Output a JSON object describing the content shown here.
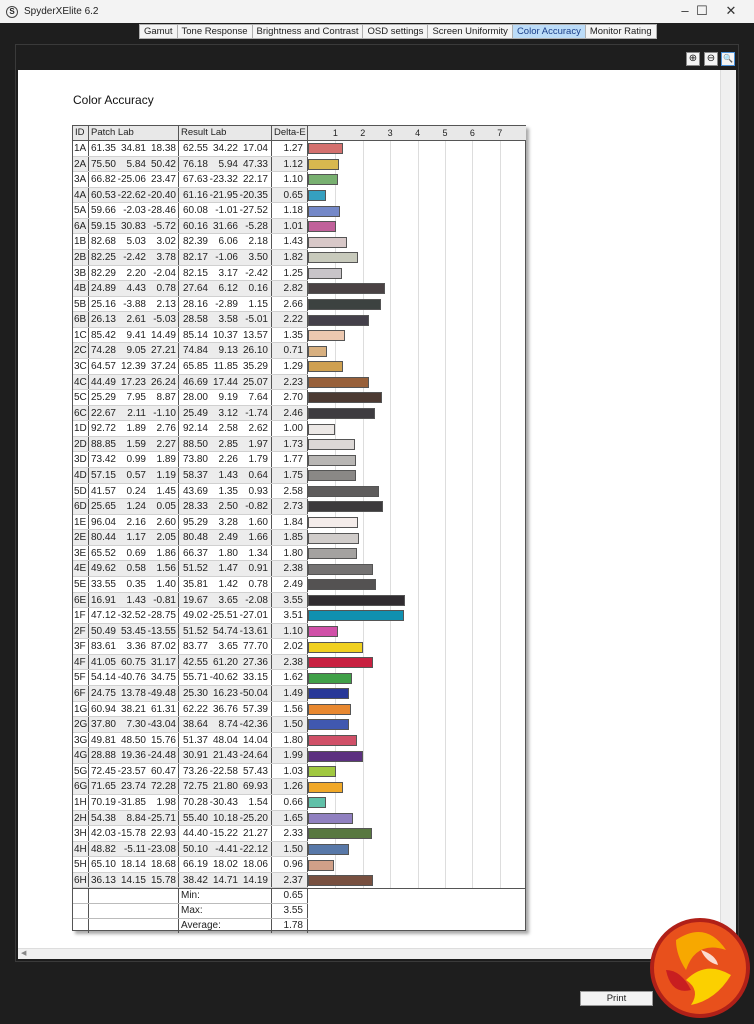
{
  "window": {
    "title": "SpyderXElite 6.2",
    "app_icon_letter": "S",
    "minimize": "–",
    "maximize": "☐",
    "close": "✕"
  },
  "tabs": [
    {
      "label": "Gamut"
    },
    {
      "label": "Tone Response"
    },
    {
      "label": "Brightness and Contrast"
    },
    {
      "label": "OSD settings"
    },
    {
      "label": "Screen Uniformity"
    },
    {
      "label": "Color Accuracy",
      "active": true
    },
    {
      "label": "Monitor Rating"
    }
  ],
  "zoom_controls": {
    "zoom_in": "⊕",
    "zoom_out": "⊖",
    "fit": "🔍"
  },
  "report": {
    "title": "Color Accuracy",
    "headers": {
      "id": "ID",
      "patch": "Patch Lab",
      "result": "Result Lab",
      "delta": "Delta-E"
    },
    "axis": {
      "ticks": [
        "1",
        "2",
        "3",
        "4",
        "5",
        "6",
        "7"
      ],
      "max": 8
    },
    "rows": [
      {
        "id": "1A",
        "patch": [
          "61.35",
          "34.81",
          "18.38"
        ],
        "result": [
          "62.55",
          "34.22",
          "17.04"
        ],
        "de": "1.27",
        "color": "#d4706e"
      },
      {
        "id": "2A",
        "patch": [
          "75.50",
          "5.84",
          "50.42"
        ],
        "result": [
          "76.18",
          "5.94",
          "47.33"
        ],
        "de": "1.12",
        "color": "#d8b84f"
      },
      {
        "id": "3A",
        "patch": [
          "66.82",
          "-25.06",
          "23.47"
        ],
        "result": [
          "67.63",
          "-23.32",
          "22.17"
        ],
        "de": "1.10",
        "color": "#78b070"
      },
      {
        "id": "4A",
        "patch": [
          "60.53",
          "-22.62",
          "-20.40"
        ],
        "result": [
          "61.16",
          "-21.95",
          "-20.35"
        ],
        "de": "0.65",
        "color": "#35a0c0"
      },
      {
        "id": "5A",
        "patch": [
          "59.66",
          "-2.03",
          "-28.46"
        ],
        "result": [
          "60.08",
          "-1.01",
          "-27.52"
        ],
        "de": "1.18",
        "color": "#7488c8"
      },
      {
        "id": "6A",
        "patch": [
          "59.15",
          "30.83",
          "-5.72"
        ],
        "result": [
          "60.16",
          "31.66",
          "-5.28"
        ],
        "de": "1.01",
        "color": "#c0609a"
      },
      {
        "id": "1B",
        "patch": [
          "82.68",
          "5.03",
          "3.02"
        ],
        "result": [
          "82.39",
          "6.06",
          "2.18"
        ],
        "de": "1.43",
        "color": "#d8c8c8"
      },
      {
        "id": "2B",
        "patch": [
          "82.25",
          "-2.42",
          "3.78"
        ],
        "result": [
          "82.17",
          "-1.06",
          "3.50"
        ],
        "de": "1.82",
        "color": "#c8cabc"
      },
      {
        "id": "3B",
        "patch": [
          "82.29",
          "2.20",
          "-2.04"
        ],
        "result": [
          "82.15",
          "3.17",
          "-2.42"
        ],
        "de": "1.25",
        "color": "#c8c4c8"
      },
      {
        "id": "4B",
        "patch": [
          "24.89",
          "4.43",
          "0.78"
        ],
        "result": [
          "27.64",
          "6.12",
          "0.16"
        ],
        "de": "2.82",
        "color": "#4a4244"
      },
      {
        "id": "5B",
        "patch": [
          "25.16",
          "-3.88",
          "2.13"
        ],
        "result": [
          "28.16",
          "-2.89",
          "1.15"
        ],
        "de": "2.66",
        "color": "#3c4240"
      },
      {
        "id": "6B",
        "patch": [
          "26.13",
          "2.61",
          "-5.03"
        ],
        "result": [
          "28.58",
          "3.58",
          "-5.01"
        ],
        "de": "2.22",
        "color": "#44404a"
      },
      {
        "id": "1C",
        "patch": [
          "85.42",
          "9.41",
          "14.49"
        ],
        "result": [
          "85.14",
          "10.37",
          "13.57"
        ],
        "de": "1.35",
        "color": "#ecc8b0"
      },
      {
        "id": "2C",
        "patch": [
          "74.28",
          "9.05",
          "27.21"
        ],
        "result": [
          "74.84",
          "9.13",
          "26.10"
        ],
        "de": "0.71",
        "color": "#d8b080"
      },
      {
        "id": "3C",
        "patch": [
          "64.57",
          "12.39",
          "37.24"
        ],
        "result": [
          "65.85",
          "11.85",
          "35.29"
        ],
        "de": "1.29",
        "color": "#cfa050"
      },
      {
        "id": "4C",
        "patch": [
          "44.49",
          "17.23",
          "26.24"
        ],
        "result": [
          "46.69",
          "17.44",
          "25.07"
        ],
        "de": "2.23",
        "color": "#98603a"
      },
      {
        "id": "5C",
        "patch": [
          "25.29",
          "7.95",
          "8.87"
        ],
        "result": [
          "28.00",
          "9.19",
          "7.64"
        ],
        "de": "2.70",
        "color": "#4c3a32"
      },
      {
        "id": "6C",
        "patch": [
          "22.67",
          "2.11",
          "-1.10"
        ],
        "result": [
          "25.49",
          "3.12",
          "-1.74"
        ],
        "de": "2.46",
        "color": "#3e3c40"
      },
      {
        "id": "1D",
        "patch": [
          "92.72",
          "1.89",
          "2.76"
        ],
        "result": [
          "92.14",
          "2.58",
          "2.62"
        ],
        "de": "1.00",
        "color": "#ece8e6"
      },
      {
        "id": "2D",
        "patch": [
          "88.85",
          "1.59",
          "2.27"
        ],
        "result": [
          "88.50",
          "2.85",
          "1.97"
        ],
        "de": "1.73",
        "color": "#dcd8d6"
      },
      {
        "id": "3D",
        "patch": [
          "73.42",
          "0.99",
          "1.89"
        ],
        "result": [
          "73.80",
          "2.26",
          "1.79"
        ],
        "de": "1.77",
        "color": "#b8b6b4"
      },
      {
        "id": "4D",
        "patch": [
          "57.15",
          "0.57",
          "1.19"
        ],
        "result": [
          "58.37",
          "1.43",
          "0.64"
        ],
        "de": "1.75",
        "color": "#8a8886"
      },
      {
        "id": "5D",
        "patch": [
          "41.57",
          "0.24",
          "1.45"
        ],
        "result": [
          "43.69",
          "1.35",
          "0.93"
        ],
        "de": "2.58",
        "color": "#5e5c5c"
      },
      {
        "id": "6D",
        "patch": [
          "25.65",
          "1.24",
          "0.05"
        ],
        "result": [
          "28.33",
          "2.50",
          "-0.82"
        ],
        "de": "2.73",
        "color": "#3c3a3c"
      },
      {
        "id": "1E",
        "patch": [
          "96.04",
          "2.16",
          "2.60"
        ],
        "result": [
          "95.29",
          "3.28",
          "1.60"
        ],
        "de": "1.84",
        "color": "#f4ecea"
      },
      {
        "id": "2E",
        "patch": [
          "80.44",
          "1.17",
          "2.05"
        ],
        "result": [
          "80.48",
          "2.49",
          "1.66"
        ],
        "de": "1.85",
        "color": "#d0ccca"
      },
      {
        "id": "3E",
        "patch": [
          "65.52",
          "0.69",
          "1.86"
        ],
        "result": [
          "66.37",
          "1.80",
          "1.34"
        ],
        "de": "1.80",
        "color": "#a4a2a0"
      },
      {
        "id": "4E",
        "patch": [
          "49.62",
          "0.58",
          "1.56"
        ],
        "result": [
          "51.52",
          "1.47",
          "0.91"
        ],
        "de": "2.38",
        "color": "#747272"
      },
      {
        "id": "5E",
        "patch": [
          "33.55",
          "0.35",
          "1.40"
        ],
        "result": [
          "35.81",
          "1.42",
          "0.78"
        ],
        "de": "2.49",
        "color": "#545252"
      },
      {
        "id": "6E",
        "patch": [
          "16.91",
          "1.43",
          "-0.81"
        ],
        "result": [
          "19.67",
          "3.65",
          "-2.08"
        ],
        "de": "3.55",
        "color": "#302c30"
      },
      {
        "id": "1F",
        "patch": [
          "47.12",
          "-32.52",
          "-28.75"
        ],
        "result": [
          "49.02",
          "-25.51",
          "-27.01"
        ],
        "de": "3.51",
        "color": "#1090b0"
      },
      {
        "id": "2F",
        "patch": [
          "50.49",
          "53.45",
          "-13.55"
        ],
        "result": [
          "51.52",
          "54.74",
          "-13.61"
        ],
        "de": "1.10",
        "color": "#d050a8"
      },
      {
        "id": "3F",
        "patch": [
          "83.61",
          "3.36",
          "87.02"
        ],
        "result": [
          "83.77",
          "3.65",
          "77.70"
        ],
        "de": "2.02",
        "color": "#f0d020"
      },
      {
        "id": "4F",
        "patch": [
          "41.05",
          "60.75",
          "31.17"
        ],
        "result": [
          "42.55",
          "61.20",
          "27.36"
        ],
        "de": "2.38",
        "color": "#c82040"
      },
      {
        "id": "5F",
        "patch": [
          "54.14",
          "-40.76",
          "34.75"
        ],
        "result": [
          "55.71",
          "-40.62",
          "33.15"
        ],
        "de": "1.62",
        "color": "#40a048"
      },
      {
        "id": "6F",
        "patch": [
          "24.75",
          "13.78",
          "-49.48"
        ],
        "result": [
          "25.30",
          "16.23",
          "-50.04"
        ],
        "de": "1.49",
        "color": "#283898"
      },
      {
        "id": "1G",
        "patch": [
          "60.94",
          "38.21",
          "61.31"
        ],
        "result": [
          "62.22",
          "36.76",
          "57.39"
        ],
        "de": "1.56",
        "color": "#e88830"
      },
      {
        "id": "2G",
        "patch": [
          "37.80",
          "7.30",
          "-43.04"
        ],
        "result": [
          "38.64",
          "8.74",
          "-42.36"
        ],
        "de": "1.50",
        "color": "#4058b0"
      },
      {
        "id": "3G",
        "patch": [
          "49.81",
          "48.50",
          "15.76"
        ],
        "result": [
          "51.37",
          "48.04",
          "14.04"
        ],
        "de": "1.80",
        "color": "#d05068"
      },
      {
        "id": "4G",
        "patch": [
          "28.88",
          "19.36",
          "-24.48"
        ],
        "result": [
          "30.91",
          "21.43",
          "-24.64"
        ],
        "de": "1.99",
        "color": "#5c3080"
      },
      {
        "id": "5G",
        "patch": [
          "72.45",
          "-23.57",
          "60.47"
        ],
        "result": [
          "73.26",
          "-22.58",
          "57.43"
        ],
        "de": "1.03",
        "color": "#a0c840"
      },
      {
        "id": "6G",
        "patch": [
          "71.65",
          "23.74",
          "72.28"
        ],
        "result": [
          "72.75",
          "21.80",
          "69.93"
        ],
        "de": "1.26",
        "color": "#f0a828"
      },
      {
        "id": "1H",
        "patch": [
          "70.19",
          "-31.85",
          "1.98"
        ],
        "result": [
          "70.28",
          "-30.43",
          "1.54"
        ],
        "de": "0.66",
        "color": "#60c0a8"
      },
      {
        "id": "2H",
        "patch": [
          "54.38",
          "8.84",
          "-25.71"
        ],
        "result": [
          "55.40",
          "10.18",
          "-25.20"
        ],
        "de": "1.65",
        "color": "#9080c0"
      },
      {
        "id": "3H",
        "patch": [
          "42.03",
          "-15.78",
          "22.93"
        ],
        "result": [
          "44.40",
          "-15.22",
          "21.27"
        ],
        "de": "2.33",
        "color": "#587840"
      },
      {
        "id": "4H",
        "patch": [
          "48.82",
          "-5.11",
          "-23.08"
        ],
        "result": [
          "50.10",
          "-4.41",
          "-22.12"
        ],
        "de": "1.50",
        "color": "#5878a8"
      },
      {
        "id": "5H",
        "patch": [
          "65.10",
          "18.14",
          "18.68"
        ],
        "result": [
          "66.19",
          "18.02",
          "18.06"
        ],
        "de": "0.96",
        "color": "#d0a088"
      },
      {
        "id": "6H",
        "patch": [
          "36.13",
          "14.15",
          "15.78"
        ],
        "result": [
          "38.42",
          "14.71",
          "14.19"
        ],
        "de": "2.37",
        "color": "#785040"
      }
    ],
    "summary": [
      {
        "label": "Min:",
        "value": "0.65"
      },
      {
        "label": "Max:",
        "value": "3.55"
      },
      {
        "label": "Average:",
        "value": "1.78"
      }
    ]
  },
  "footer": {
    "print_label": "Print"
  }
}
